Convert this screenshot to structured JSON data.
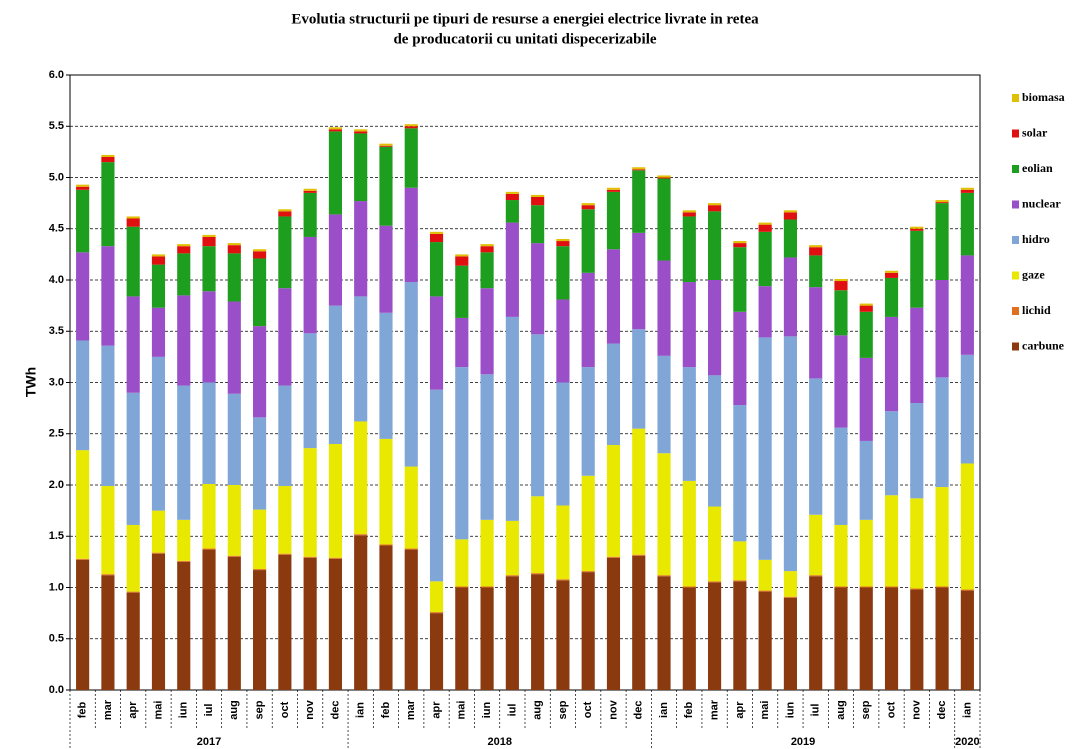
{
  "chart_data": {
    "type": "stacked-bar",
    "title": [
      "Evolutia structurii pe tipuri de resurse a energiei electrice livrate in retea",
      "de producatorii cu unitati dispecerizabile"
    ],
    "y_label": "TWh",
    "groups": [
      {
        "label": "2017",
        "categories": [
          "feb",
          "mar",
          "apr",
          "mai",
          "iun",
          "iul",
          "aug",
          "sep",
          "oct",
          "nov",
          "dec"
        ]
      },
      {
        "label": "2018",
        "categories": [
          "ian",
          "feb",
          "mar",
          "apr",
          "mai",
          "iun",
          "iul",
          "aug",
          "sep",
          "oct",
          "nov",
          "dec"
        ]
      },
      {
        "label": "2019",
        "categories": [
          "ian",
          "feb",
          "mar",
          "apr",
          "mai",
          "iun",
          "iul",
          "aug",
          "sep",
          "oct",
          "nov",
          "dec"
        ]
      },
      {
        "label": "2020",
        "categories": [
          "ian"
        ]
      }
    ],
    "ylim": [
      0,
      6
    ],
    "yticks": [
      {
        "value": 0,
        "label": "0.0"
      },
      0.5,
      {
        "value": 1,
        "label": "1.0"
      },
      1.5,
      {
        "value": 2,
        "label": "2.0"
      },
      2.5,
      {
        "value": 3,
        "label": "3.0"
      },
      3.5,
      {
        "value": 4,
        "label": "4.0"
      },
      4.5,
      {
        "value": 5,
        "label": "5.0"
      },
      5.5,
      {
        "value": 6,
        "label": "6.0"
      }
    ],
    "grid": true,
    "legend": "right",
    "series": [
      {
        "name": "carbune",
        "color": "#8b3a0f",
        "values": [
          1.27,
          1.12,
          0.95,
          1.33,
          1.25,
          1.37,
          1.3,
          1.17,
          1.32,
          1.29,
          1.28,
          1.51,
          1.41,
          1.37,
          0.75,
          1.0,
          1.0,
          1.11,
          1.13,
          1.07,
          1.15,
          1.29,
          1.31,
          1.11,
          1.0,
          1.05,
          1.06,
          0.96,
          0.9,
          1.11,
          1.0,
          1.0,
          1.0,
          0.98,
          1.0,
          0.97
        ]
      },
      {
        "name": "lichid",
        "color": "#e07020",
        "values": [
          0.01,
          0.01,
          0.01,
          0.01,
          0.01,
          0.01,
          0.01,
          0.01,
          0.01,
          0.01,
          0.01,
          0.01,
          0.01,
          0.01,
          0.01,
          0.01,
          0.01,
          0.01,
          0.01,
          0.01,
          0.01,
          0.01,
          0.01,
          0.01,
          0.01,
          0.01,
          0.01,
          0.01,
          0.01,
          0.01,
          0.01,
          0.01,
          0.01,
          0.01,
          0.01,
          0.01
        ]
      },
      {
        "name": "gaze",
        "color": "#e8e800",
        "values": [
          1.06,
          0.86,
          0.65,
          0.41,
          0.4,
          0.63,
          0.69,
          0.58,
          0.66,
          1.06,
          1.11,
          1.1,
          1.03,
          0.8,
          0.3,
          0.46,
          0.65,
          0.53,
          0.75,
          0.72,
          0.93,
          1.09,
          1.23,
          1.19,
          1.03,
          0.73,
          0.38,
          0.3,
          0.25,
          0.59,
          0.6,
          0.65,
          0.89,
          0.88,
          0.97,
          1.23
        ]
      },
      {
        "name": "hidro",
        "color": "#7fa6d6",
        "values": [
          1.07,
          1.37,
          1.29,
          1.5,
          1.31,
          0.99,
          0.89,
          0.9,
          0.98,
          1.12,
          1.35,
          1.22,
          1.23,
          1.8,
          1.87,
          1.68,
          1.42,
          1.99,
          1.58,
          1.2,
          1.06,
          0.99,
          0.97,
          0.95,
          1.11,
          1.28,
          1.33,
          2.17,
          2.29,
          1.33,
          0.95,
          0.77,
          0.82,
          0.93,
          1.07,
          1.06
        ]
      },
      {
        "name": "nuclear",
        "color": "#9a4fc8",
        "values": [
          0.86,
          0.97,
          0.94,
          0.48,
          0.88,
          0.89,
          0.9,
          0.89,
          0.95,
          0.94,
          0.89,
          0.93,
          0.85,
          0.92,
          0.91,
          0.48,
          0.84,
          0.92,
          0.89,
          0.81,
          0.92,
          0.92,
          0.94,
          0.93,
          0.83,
          0.93,
          0.91,
          0.5,
          0.77,
          0.89,
          0.9,
          0.81,
          0.92,
          0.93,
          0.95,
          0.97
        ]
      },
      {
        "name": "eolian",
        "color": "#1e9e1e",
        "values": [
          0.61,
          0.82,
          0.68,
          0.42,
          0.41,
          0.44,
          0.47,
          0.66,
          0.7,
          0.43,
          0.81,
          0.66,
          0.77,
          0.58,
          0.53,
          0.51,
          0.35,
          0.22,
          0.37,
          0.52,
          0.62,
          0.56,
          0.61,
          0.8,
          0.64,
          0.67,
          0.63,
          0.53,
          0.37,
          0.31,
          0.44,
          0.45,
          0.38,
          0.75,
          0.75,
          0.61
        ]
      },
      {
        "name": "solar",
        "color": "#e01010",
        "values": [
          0.03,
          0.05,
          0.08,
          0.08,
          0.07,
          0.09,
          0.08,
          0.07,
          0.05,
          0.02,
          0.02,
          0.02,
          0.01,
          0.02,
          0.08,
          0.09,
          0.06,
          0.06,
          0.08,
          0.05,
          0.04,
          0.02,
          0.01,
          0.01,
          0.04,
          0.06,
          0.04,
          0.07,
          0.07,
          0.08,
          0.09,
          0.06,
          0.05,
          0.02,
          0.01,
          0.03
        ]
      },
      {
        "name": "biomasa",
        "color": "#e0c000",
        "values": [
          0.02,
          0.02,
          0.02,
          0.02,
          0.02,
          0.02,
          0.02,
          0.02,
          0.02,
          0.02,
          0.02,
          0.02,
          0.02,
          0.02,
          0.02,
          0.02,
          0.02,
          0.02,
          0.02,
          0.02,
          0.02,
          0.02,
          0.02,
          0.02,
          0.02,
          0.02,
          0.02,
          0.02,
          0.02,
          0.02,
          0.02,
          0.02,
          0.02,
          0.02,
          0.02,
          0.02
        ]
      }
    ]
  }
}
